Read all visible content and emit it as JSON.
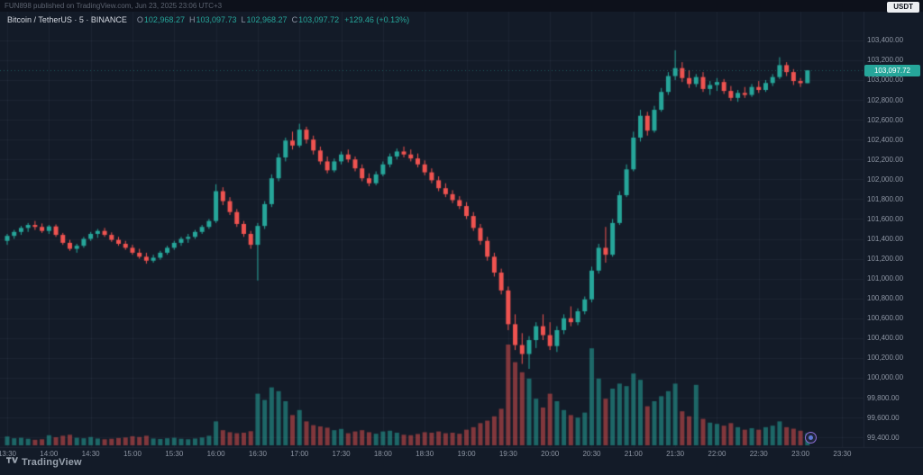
{
  "attribution": {
    "text": "FUN898 published on TradingView.com, Jun 23, 2025 23:06 UTC+3"
  },
  "toolbar": {
    "currency_label": "USDT"
  },
  "legend": {
    "title": "Bitcoin / TetherUS · 5 · BINANCE",
    "ohlc": {
      "o_label": "O",
      "o": "102,968.27",
      "h_label": "H",
      "h": "103,097.73",
      "l_label": "L",
      "l": "102,968.27",
      "c_label": "C",
      "c": "103,097.72",
      "change": "+129.46 (+0.13%)"
    }
  },
  "price_axis": {
    "current": "103,097.72",
    "labels": [
      "103,400.00",
      "103,200.00",
      "103,000.00",
      "102,800.00",
      "102,600.00",
      "102,400.00",
      "102,200.00",
      "102,000.00",
      "101,800.00",
      "101,600.00",
      "101,400.00",
      "101,200.00",
      "101,000.00",
      "100,800.00",
      "100,600.00",
      "100,400.00",
      "100,200.00",
      "100,000.00",
      "99,800.00",
      "99,600.00",
      "99,400.00"
    ]
  },
  "time_axis": {
    "labels": [
      "13:30",
      "14:00",
      "14:30",
      "15:00",
      "15:30",
      "16:00",
      "16:30",
      "17:00",
      "17:30",
      "18:00",
      "18:30",
      "19:00",
      "19:30",
      "20:00",
      "20:30",
      "21:00",
      "21:30",
      "22:00",
      "22:30",
      "23:00",
      "23:30"
    ]
  },
  "footer": {
    "brand": "TradingView"
  },
  "colors": {
    "background": "#131b28",
    "top_bar": "#0d111b",
    "grid": "rgba(135,150,175,0.08)",
    "separator": "#1f2736",
    "up": "#26a69a",
    "down": "#ef5350",
    "vol_up": "rgba(38,166,154,0.55)",
    "vol_down": "rgba(239,83,80,0.50)",
    "axis_text": "#8d95a3",
    "last_price_bg": "#26a69a"
  },
  "chart_data": {
    "type": "candlestick",
    "symbol": "Bitcoin / TetherUS",
    "exchange": "BINANCE",
    "interval_minutes": 5,
    "price_range_visible": [
      99320,
      103480
    ],
    "volume_max": 400,
    "last_close": 103097.72,
    "candles": [
      [
        "13:30",
        101380,
        101450,
        101340,
        101430,
        35
      ],
      [
        "13:35",
        101430,
        101490,
        101400,
        101470,
        28
      ],
      [
        "13:40",
        101470,
        101530,
        101440,
        101510,
        30
      ],
      [
        "13:45",
        101510,
        101560,
        101470,
        101540,
        26
      ],
      [
        "13:50",
        101540,
        101580,
        101490,
        101520,
        22
      ],
      [
        "13:55",
        101520,
        101555,
        101460,
        101480,
        24
      ],
      [
        "14:00",
        101480,
        101540,
        101450,
        101525,
        40
      ],
      [
        "14:05",
        101525,
        101545,
        101420,
        101440,
        32
      ],
      [
        "14:10",
        101440,
        101460,
        101340,
        101360,
        38
      ],
      [
        "14:15",
        101360,
        101390,
        101280,
        101300,
        42
      ],
      [
        "14:20",
        101300,
        101350,
        101260,
        101330,
        30
      ],
      [
        "14:25",
        101330,
        101420,
        101310,
        101400,
        28
      ],
      [
        "14:30",
        101400,
        101470,
        101380,
        101450,
        33
      ],
      [
        "14:35",
        101450,
        101500,
        101410,
        101480,
        27
      ],
      [
        "14:40",
        101480,
        101510,
        101420,
        101440,
        24
      ],
      [
        "14:45",
        101440,
        101465,
        101370,
        101390,
        26
      ],
      [
        "14:50",
        101390,
        101420,
        101330,
        101350,
        29
      ],
      [
        "14:55",
        101350,
        101380,
        101290,
        101310,
        31
      ],
      [
        "15:00",
        101310,
        101340,
        101240,
        101260,
        36
      ],
      [
        "15:05",
        101260,
        101300,
        101200,
        101220,
        33
      ],
      [
        "15:10",
        101220,
        101260,
        101150,
        101180,
        38
      ],
      [
        "15:15",
        101180,
        101240,
        101160,
        101210,
        27
      ],
      [
        "15:20",
        101210,
        101280,
        101190,
        101260,
        25
      ],
      [
        "15:25",
        101260,
        101330,
        101240,
        101310,
        28
      ],
      [
        "15:30",
        101310,
        101380,
        101290,
        101360,
        30
      ],
      [
        "15:35",
        101360,
        101420,
        101330,
        101400,
        26
      ],
      [
        "15:40",
        101400,
        101450,
        101360,
        101420,
        24
      ],
      [
        "15:45",
        101420,
        101490,
        101400,
        101470,
        27
      ],
      [
        "15:50",
        101470,
        101540,
        101450,
        101520,
        31
      ],
      [
        "15:55",
        101520,
        101600,
        101500,
        101580,
        38
      ],
      [
        "16:00",
        101580,
        101950,
        101560,
        101880,
        95
      ],
      [
        "16:05",
        101880,
        101920,
        101740,
        101780,
        60
      ],
      [
        "16:10",
        101780,
        101820,
        101640,
        101670,
        52
      ],
      [
        "16:15",
        101670,
        101700,
        101520,
        101550,
        48
      ],
      [
        "16:20",
        101550,
        101580,
        101420,
        101450,
        50
      ],
      [
        "16:25",
        101450,
        101480,
        101300,
        101340,
        56
      ],
      [
        "16:30",
        101340,
        101560,
        100980,
        101530,
        205
      ],
      [
        "16:35",
        101530,
        101780,
        101500,
        101750,
        180
      ],
      [
        "16:40",
        101750,
        102050,
        101720,
        102010,
        230
      ],
      [
        "16:45",
        102010,
        102260,
        101980,
        102220,
        215
      ],
      [
        "16:50",
        102220,
        102420,
        102180,
        102390,
        175
      ],
      [
        "16:55",
        102390,
        102480,
        102300,
        102340,
        120
      ],
      [
        "17:00",
        102340,
        102560,
        102320,
        102500,
        140
      ],
      [
        "17:05",
        102500,
        102530,
        102360,
        102400,
        95
      ],
      [
        "17:10",
        102400,
        102440,
        102250,
        102290,
        80
      ],
      [
        "17:15",
        102290,
        102330,
        102150,
        102180,
        75
      ],
      [
        "17:20",
        102180,
        102230,
        102060,
        102090,
        70
      ],
      [
        "17:25",
        102090,
        102210,
        102070,
        102180,
        60
      ],
      [
        "17:30",
        102180,
        102280,
        102150,
        102250,
        65
      ],
      [
        "17:35",
        102250,
        102300,
        102170,
        102200,
        48
      ],
      [
        "17:40",
        102200,
        102230,
        102080,
        102110,
        55
      ],
      [
        "17:45",
        102110,
        102150,
        101980,
        102010,
        60
      ],
      [
        "17:50",
        102010,
        102060,
        101930,
        101960,
        52
      ],
      [
        "17:55",
        101960,
        102080,
        101940,
        102050,
        46
      ],
      [
        "18:00",
        102050,
        102180,
        102030,
        102150,
        55
      ],
      [
        "18:05",
        102150,
        102260,
        102120,
        102230,
        58
      ],
      [
        "18:10",
        102230,
        102310,
        102200,
        102280,
        50
      ],
      [
        "18:15",
        102280,
        102330,
        102220,
        102250,
        42
      ],
      [
        "18:20",
        102250,
        102300,
        102180,
        102210,
        40
      ],
      [
        "18:25",
        102210,
        102260,
        102120,
        102150,
        45
      ],
      [
        "18:30",
        102150,
        102190,
        102040,
        102070,
        52
      ],
      [
        "18:35",
        102070,
        102110,
        101960,
        101990,
        50
      ],
      [
        "18:40",
        101990,
        102030,
        101880,
        101910,
        55
      ],
      [
        "18:45",
        101910,
        101960,
        101820,
        101850,
        48
      ],
      [
        "18:50",
        101850,
        101890,
        101760,
        101790,
        50
      ],
      [
        "18:55",
        101790,
        101830,
        101700,
        101730,
        46
      ],
      [
        "19:00",
        101730,
        101770,
        101600,
        101630,
        62
      ],
      [
        "19:05",
        101630,
        101670,
        101480,
        101510,
        72
      ],
      [
        "19:10",
        101510,
        101550,
        101340,
        101380,
        88
      ],
      [
        "19:15",
        101380,
        101420,
        101180,
        101220,
        98
      ],
      [
        "19:20",
        101220,
        101260,
        101020,
        101060,
        115
      ],
      [
        "19:25",
        101060,
        101100,
        100840,
        100880,
        145
      ],
      [
        "19:30",
        100880,
        100920,
        100480,
        100540,
        400
      ],
      [
        "19:35",
        100540,
        100640,
        100280,
        100330,
        330
      ],
      [
        "19:40",
        100330,
        100450,
        100140,
        100240,
        290
      ],
      [
        "19:45",
        100240,
        100420,
        100090,
        100380,
        265
      ],
      [
        "19:50",
        100380,
        100560,
        100300,
        100520,
        185
      ],
      [
        "19:55",
        100520,
        100640,
        100380,
        100430,
        150
      ],
      [
        "20:00",
        100430,
        100560,
        100280,
        100320,
        205
      ],
      [
        "20:05",
        100320,
        100520,
        100260,
        100480,
        175
      ],
      [
        "20:10",
        100480,
        100640,
        100440,
        100600,
        140
      ],
      [
        "20:15",
        100600,
        100720,
        100520,
        100560,
        120
      ],
      [
        "20:20",
        100560,
        100700,
        100530,
        100670,
        110
      ],
      [
        "20:25",
        100670,
        100820,
        100640,
        100790,
        130
      ],
      [
        "20:30",
        100790,
        101120,
        100760,
        101080,
        385
      ],
      [
        "20:35",
        101080,
        101350,
        101050,
        101310,
        265
      ],
      [
        "20:40",
        101310,
        101520,
        101160,
        101240,
        185
      ],
      [
        "20:45",
        101240,
        101600,
        101220,
        101560,
        225
      ],
      [
        "20:50",
        101560,
        101880,
        101540,
        101840,
        245
      ],
      [
        "20:55",
        101840,
        102150,
        101820,
        102100,
        235
      ],
      [
        "21:00",
        102100,
        102480,
        102080,
        102420,
        285
      ],
      [
        "21:05",
        102420,
        102700,
        102380,
        102640,
        260
      ],
      [
        "21:10",
        102640,
        102680,
        102440,
        102490,
        155
      ],
      [
        "21:15",
        102490,
        102740,
        102470,
        102700,
        175
      ],
      [
        "21:20",
        102700,
        102920,
        102680,
        102880,
        195
      ],
      [
        "21:25",
        102880,
        103080,
        102850,
        103040,
        215
      ],
      [
        "21:30",
        103040,
        103300,
        103000,
        103120,
        245
      ],
      [
        "21:35",
        103120,
        103180,
        102980,
        103020,
        135
      ],
      [
        "21:40",
        103020,
        103100,
        102920,
        102960,
        115
      ],
      [
        "21:45",
        102960,
        103060,
        102930,
        103030,
        240
      ],
      [
        "21:50",
        103030,
        103080,
        102880,
        102910,
        105
      ],
      [
        "21:55",
        102910,
        102990,
        102850,
        102950,
        90
      ],
      [
        "22:00",
        102950,
        103020,
        102890,
        102980,
        85
      ],
      [
        "22:05",
        102980,
        103010,
        102860,
        102890,
        78
      ],
      [
        "22:10",
        102890,
        102940,
        102790,
        102820,
        88
      ],
      [
        "22:15",
        102820,
        102900,
        102780,
        102870,
        72
      ],
      [
        "22:20",
        102870,
        102930,
        102820,
        102850,
        62
      ],
      [
        "22:25",
        102850,
        102960,
        102830,
        102930,
        68
      ],
      [
        "22:30",
        102930,
        102990,
        102870,
        102900,
        62
      ],
      [
        "22:35",
        102900,
        103000,
        102880,
        102970,
        72
      ],
      [
        "22:40",
        102970,
        103060,
        102940,
        103030,
        78
      ],
      [
        "22:45",
        103030,
        103230,
        103010,
        103150,
        95
      ],
      [
        "22:50",
        103150,
        103180,
        103040,
        103080,
        72
      ],
      [
        "22:55",
        103080,
        103110,
        102950,
        102990,
        66
      ],
      [
        "23:00",
        102990,
        103020,
        102930,
        102968.27,
        58
      ],
      [
        "23:05",
        102968.27,
        103097.73,
        102968.27,
        103097.72,
        48
      ]
    ]
  }
}
